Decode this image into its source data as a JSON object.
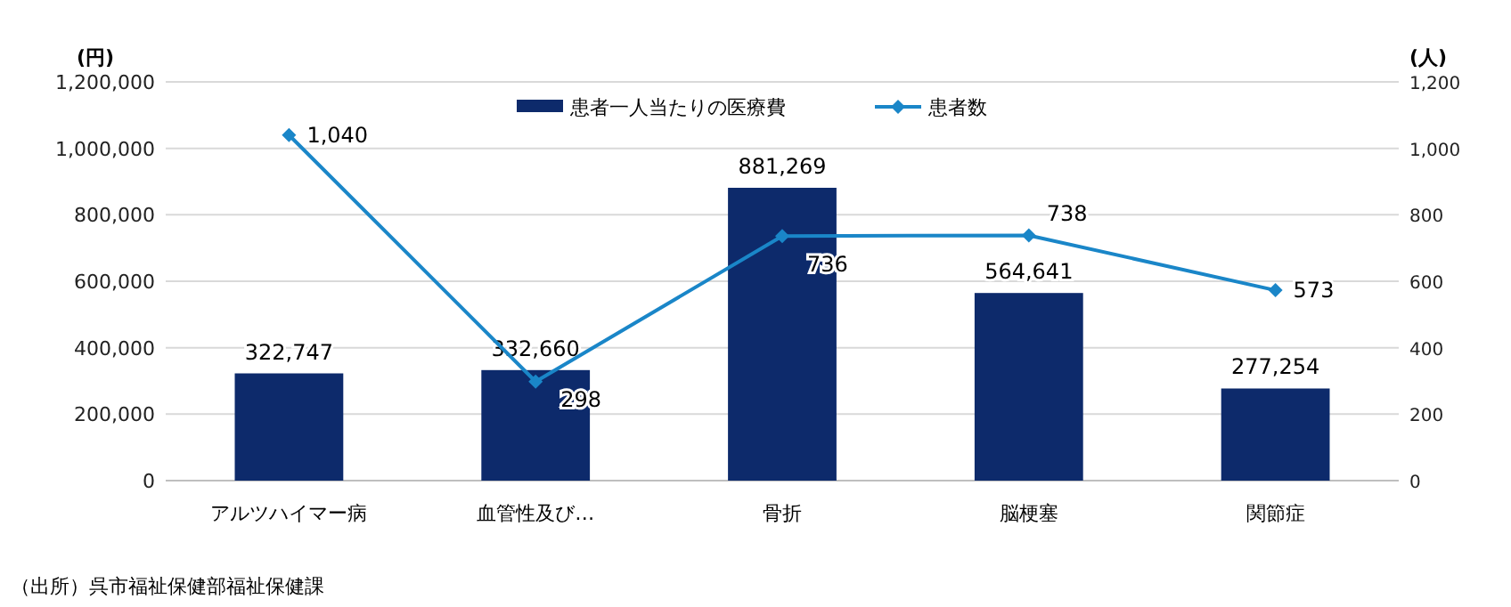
{
  "chart_data": {
    "type": "bar",
    "categories": [
      "アルツハイマー病",
      "血管性及び…",
      "骨折",
      "脳梗塞",
      "関節症"
    ],
    "ylabel": "(円)",
    "y2label": "(人)",
    "series": [
      {
        "name": "患者一人当たりの医療費",
        "color": "#0d2a6b",
        "values": [
          322747,
          332660,
          881269,
          564641,
          277254
        ],
        "value_labels": [
          "322,747",
          "332,660",
          "881,269",
          "564,641",
          "277,254"
        ]
      },
      {
        "name": "患者数",
        "type": "line",
        "axis": "y2",
        "color": "#1a86c8",
        "marker": "diamond",
        "values": [
          1040,
          298,
          736,
          738,
          573
        ],
        "value_labels": [
          "1,040",
          "298",
          "736",
          "738",
          "573"
        ]
      }
    ],
    "ylim": [
      0,
      1200000
    ],
    "yticks": [
      0,
      {
        "value": 200000,
        "label": "200,000"
      },
      {
        "value": 400000,
        "label": "400,000"
      },
      {
        "value": 600000,
        "label": "600,000"
      },
      {
        "value": 800000,
        "label": "800,000"
      },
      {
        "value": 1000000,
        "label": "1,000,000"
      },
      {
        "value": 1200000,
        "label": "1,200,000"
      }
    ],
    "y2lim": [
      0,
      1200
    ],
    "y2ticks": [
      0,
      200,
      400,
      600,
      800,
      {
        "value": 1000,
        "label": "1,000"
      },
      {
        "value": 1200,
        "label": "1,200"
      }
    ],
    "grid": "y",
    "legend": "top",
    "annotations": [
      "（出所）呉市福祉保健部福祉保健課"
    ]
  }
}
